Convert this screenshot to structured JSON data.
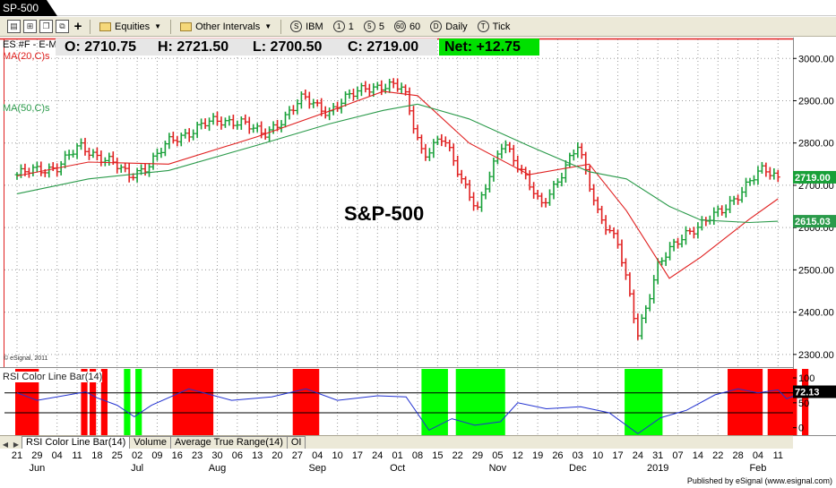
{
  "window": {
    "title": "SP-500"
  },
  "toolbar": {
    "symbols_menu": "Equities",
    "intervals_menu": "Other Intervals",
    "buttons": [
      "IBM",
      "1",
      "5",
      "60",
      "Daily",
      "Tick"
    ],
    "button_keys": [
      "S",
      "1",
      "5",
      "60",
      "D",
      "T"
    ]
  },
  "quote": {
    "symbol": "ES #F - E-M",
    "open": "O: 2710.75",
    "high": "H: 2721.50",
    "low": "L: 2700.50",
    "close": "C: 2719.00",
    "net": "Net: +12.75"
  },
  "studies": {
    "ma20": "MA(20,C)s",
    "ma50": "MA(50,C)s",
    "rsi": "RSI Color Line Bar(14)"
  },
  "chart_title": "S&P-500",
  "copyright": "© eSignal, 2011",
  "price_axis": {
    "ticks": [
      "3000.00",
      "2900.00",
      "2800.00",
      "2700.00",
      "2600.00",
      "2500.00",
      "2400.00",
      "2300.00"
    ],
    "last_price": "2719.00",
    "ma50_value": "2615.03"
  },
  "rsi_axis": {
    "ticks": [
      "100",
      "50",
      "0"
    ],
    "current": "72.13"
  },
  "date_axis": {
    "days": [
      "21",
      "29",
      "04",
      "11",
      "18",
      "25",
      "02",
      "09",
      "16",
      "23",
      "30",
      "06",
      "13",
      "20",
      "27",
      "04",
      "10",
      "17",
      "24",
      "01",
      "08",
      "15",
      "22",
      "29",
      "05",
      "12",
      "19",
      "26",
      "03",
      "10",
      "17",
      "24",
      "31",
      "07",
      "14",
      "22",
      "28",
      "04",
      "11"
    ],
    "months": [
      "Jun",
      "Jul",
      "Aug",
      "Sep",
      "Oct",
      "Nov",
      "Dec",
      "2019",
      "Feb"
    ]
  },
  "tabs": [
    "RSI Color Line Bar(14)",
    "Volume",
    "Average True Range(14)",
    "OI"
  ],
  "footer": "Published by eSignal (www.esignal.com)",
  "colors": {
    "up": "#18a038",
    "down": "#e02020",
    "ma20": "#e02020",
    "ma50": "#2a9a4a",
    "rsi_hi": "#ff0000",
    "rsi_lo": "#00ff00",
    "net_bg": "#00e000"
  },
  "chart_data": {
    "type": "line",
    "title": "",
    "series": [
      {
        "name": "MA(20,C)s",
        "x": [
          "2018-05-21",
          "2018-06-15",
          "2018-07-13",
          "2018-08-13",
          "2018-09-07",
          "2018-09-26",
          "2018-10-08",
          "2018-10-26",
          "2018-11-16",
          "2018-12-07",
          "2018-12-20",
          "2019-01-04",
          "2019-01-15",
          "2019-02-01",
          "2019-02-11"
        ],
        "values": [
          2722,
          2755,
          2750,
          2815,
          2875,
          2922,
          2912,
          2800,
          2725,
          2750,
          2640,
          2480,
          2530,
          2620,
          2668
        ]
      },
      {
        "name": "MA(50,C)s",
        "x": [
          "2018-05-21",
          "2018-06-15",
          "2018-07-13",
          "2018-08-13",
          "2018-09-07",
          "2018-09-26",
          "2018-10-08",
          "2018-10-26",
          "2018-11-16",
          "2018-12-07",
          "2018-12-20",
          "2019-01-04",
          "2019-01-15",
          "2019-02-01",
          "2019-02-11"
        ],
        "values": [
          2680,
          2715,
          2735,
          2795,
          2845,
          2877,
          2892,
          2857,
          2793,
          2732,
          2715,
          2650,
          2618,
          2612,
          2615
        ]
      }
    ],
    "last_price": 2719.0,
    "ylim": [
      2270,
      3045
    ],
    "rsi": {
      "ylim": [
        -15,
        118
      ],
      "current": 72.13
    }
  }
}
